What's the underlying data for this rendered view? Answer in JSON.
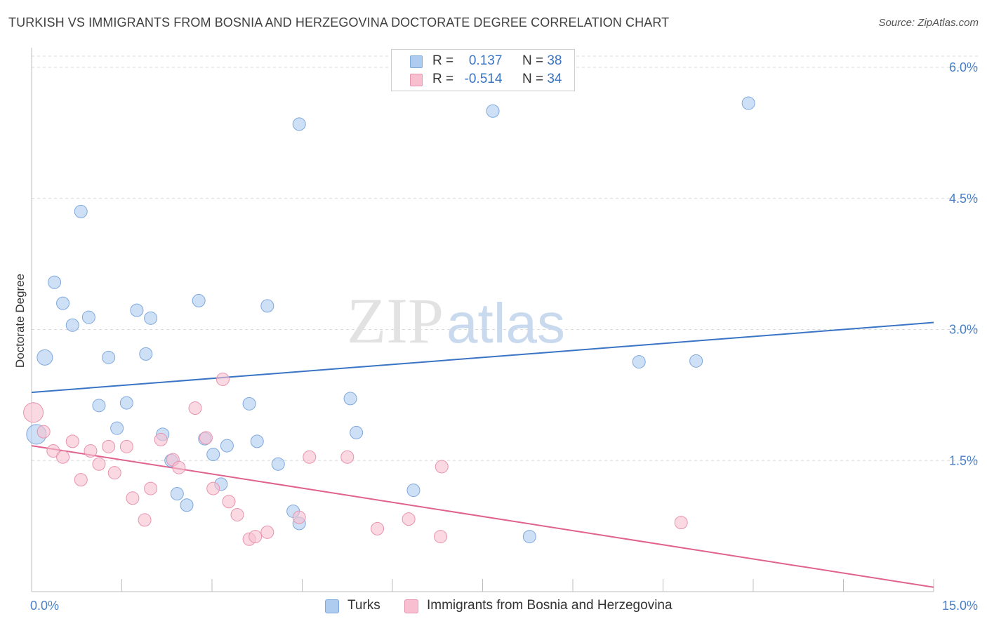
{
  "header": {
    "title": "TURKISH VS IMMIGRANTS FROM BOSNIA AND HERZEGOVINA DOCTORATE DEGREE CORRELATION CHART",
    "source": "Source: ZipAtlas.com"
  },
  "watermark": {
    "zip": "ZIP",
    "atlas": "atlas"
  },
  "legend": {
    "rows": [
      {
        "r_label": "R =",
        "r_value": "0.137",
        "n_label": "N =",
        "n_value": "38",
        "color": "#aecbf0",
        "border": "#7fa8dc"
      },
      {
        "r_label": "R =",
        "r_value": "-0.514",
        "n_label": "N =",
        "n_value": "34",
        "color": "#f7bfd0",
        "border": "#e893ad"
      }
    ]
  },
  "bottom_legend": {
    "turks": "Turks",
    "bosnia": "Immigrants from Bosnia and Herzegovina"
  },
  "chart_data": {
    "type": "scatter",
    "title": "TURKISH VS IMMIGRANTS FROM BOSNIA AND HERZEGOVINA DOCTORATE DEGREE CORRELATION CHART",
    "xlabel": "",
    "ylabel": "Doctorate Degree",
    "xlim": [
      0,
      15
    ],
    "ylim": [
      0,
      6.0
    ],
    "x_tick_labels": [
      "0.0%",
      "15.0%"
    ],
    "y_ticks": [
      1.5,
      3.0,
      4.5,
      6.0
    ],
    "y_tick_labels": [
      "1.5%",
      "3.0%",
      "4.5%",
      "6.0%"
    ],
    "grid": true,
    "legend_position": "top-center",
    "series": [
      {
        "name": "Turks",
        "color": "#aecbf0",
        "stroke": "#7fa8dc",
        "line_color": "#3a74c4",
        "trend": {
          "x": [
            0,
            15
          ],
          "y": [
            2.28,
            3.08
          ]
        },
        "points": [
          {
            "x": 0.08,
            "y": 1.8,
            "s": 14
          },
          {
            "x": 0.22,
            "y": 2.68,
            "s": 11
          },
          {
            "x": 0.38,
            "y": 3.54,
            "s": 9
          },
          {
            "x": 0.52,
            "y": 3.3,
            "s": 9
          },
          {
            "x": 0.68,
            "y": 3.05,
            "s": 9
          },
          {
            "x": 0.82,
            "y": 4.35,
            "s": 9
          },
          {
            "x": 0.95,
            "y": 3.14,
            "s": 9
          },
          {
            "x": 1.12,
            "y": 2.13,
            "s": 9
          },
          {
            "x": 1.28,
            "y": 2.68,
            "s": 9
          },
          {
            "x": 1.42,
            "y": 1.87,
            "s": 9
          },
          {
            "x": 1.58,
            "y": 2.16,
            "s": 9
          },
          {
            "x": 1.75,
            "y": 3.22,
            "s": 9
          },
          {
            "x": 1.9,
            "y": 2.72,
            "s": 9
          },
          {
            "x": 1.98,
            "y": 3.13,
            "s": 9
          },
          {
            "x": 2.18,
            "y": 1.8,
            "s": 9
          },
          {
            "x": 2.32,
            "y": 1.5,
            "s": 9
          },
          {
            "x": 2.42,
            "y": 1.12,
            "s": 9
          },
          {
            "x": 2.58,
            "y": 0.99,
            "s": 9
          },
          {
            "x": 2.78,
            "y": 3.33,
            "s": 9
          },
          {
            "x": 2.88,
            "y": 1.75,
            "s": 9
          },
          {
            "x": 3.02,
            "y": 1.57,
            "s": 9
          },
          {
            "x": 3.15,
            "y": 1.23,
            "s": 9
          },
          {
            "x": 3.25,
            "y": 1.67,
            "s": 9
          },
          {
            "x": 3.62,
            "y": 2.15,
            "s": 9
          },
          {
            "x": 3.75,
            "y": 1.72,
            "s": 9
          },
          {
            "x": 3.92,
            "y": 3.27,
            "s": 9
          },
          {
            "x": 4.1,
            "y": 1.46,
            "s": 9
          },
          {
            "x": 4.35,
            "y": 0.92,
            "s": 9
          },
          {
            "x": 4.45,
            "y": 0.78,
            "s": 9
          },
          {
            "x": 4.45,
            "y": 5.35,
            "s": 9
          },
          {
            "x": 5.3,
            "y": 2.21,
            "s": 9
          },
          {
            "x": 5.4,
            "y": 1.82,
            "s": 9
          },
          {
            "x": 6.35,
            "y": 1.16,
            "s": 9
          },
          {
            "x": 7.67,
            "y": 5.5,
            "s": 9
          },
          {
            "x": 8.28,
            "y": 0.63,
            "s": 9
          },
          {
            "x": 10.1,
            "y": 2.63,
            "s": 9
          },
          {
            "x": 11.05,
            "y": 2.64,
            "s": 9
          },
          {
            "x": 11.92,
            "y": 5.59,
            "s": 9
          }
        ]
      },
      {
        "name": "Immigrants from Bosnia and Herzegovina",
        "color": "#f7bfd0",
        "stroke": "#e893ad",
        "line_color": "#e0628e",
        "trend": {
          "x": [
            0,
            15
          ],
          "y": [
            1.67,
            0.05
          ]
        },
        "points": [
          {
            "x": 0.03,
            "y": 2.05,
            "s": 14
          },
          {
            "x": 0.2,
            "y": 1.83,
            "s": 9
          },
          {
            "x": 0.36,
            "y": 1.61,
            "s": 9
          },
          {
            "x": 0.52,
            "y": 1.54,
            "s": 9
          },
          {
            "x": 0.68,
            "y": 1.72,
            "s": 9
          },
          {
            "x": 0.82,
            "y": 1.28,
            "s": 9
          },
          {
            "x": 0.98,
            "y": 1.61,
            "s": 9
          },
          {
            "x": 1.12,
            "y": 1.46,
            "s": 9
          },
          {
            "x": 1.28,
            "y": 1.66,
            "s": 9
          },
          {
            "x": 1.38,
            "y": 1.36,
            "s": 9
          },
          {
            "x": 1.58,
            "y": 1.66,
            "s": 9
          },
          {
            "x": 1.68,
            "y": 1.07,
            "s": 9
          },
          {
            "x": 1.88,
            "y": 0.82,
            "s": 9
          },
          {
            "x": 1.98,
            "y": 1.18,
            "s": 9
          },
          {
            "x": 2.15,
            "y": 1.74,
            "s": 9
          },
          {
            "x": 2.35,
            "y": 1.51,
            "s": 9
          },
          {
            "x": 2.45,
            "y": 1.42,
            "s": 9
          },
          {
            "x": 2.72,
            "y": 2.1,
            "s": 9
          },
          {
            "x": 2.9,
            "y": 1.76,
            "s": 9
          },
          {
            "x": 3.02,
            "y": 1.18,
            "s": 9
          },
          {
            "x": 3.18,
            "y": 2.43,
            "s": 9
          },
          {
            "x": 3.28,
            "y": 1.03,
            "s": 9
          },
          {
            "x": 3.42,
            "y": 0.88,
            "s": 9
          },
          {
            "x": 3.62,
            "y": 0.6,
            "s": 9
          },
          {
            "x": 3.72,
            "y": 0.63,
            "s": 9
          },
          {
            "x": 3.92,
            "y": 0.68,
            "s": 9
          },
          {
            "x": 4.45,
            "y": 0.85,
            "s": 9
          },
          {
            "x": 4.62,
            "y": 1.54,
            "s": 9
          },
          {
            "x": 5.25,
            "y": 1.54,
            "s": 9
          },
          {
            "x": 5.75,
            "y": 0.72,
            "s": 9
          },
          {
            "x": 6.27,
            "y": 0.83,
            "s": 9
          },
          {
            "x": 6.8,
            "y": 0.63,
            "s": 9
          },
          {
            "x": 6.82,
            "y": 1.43,
            "s": 9
          },
          {
            "x": 10.8,
            "y": 0.79,
            "s": 9
          }
        ]
      }
    ]
  }
}
